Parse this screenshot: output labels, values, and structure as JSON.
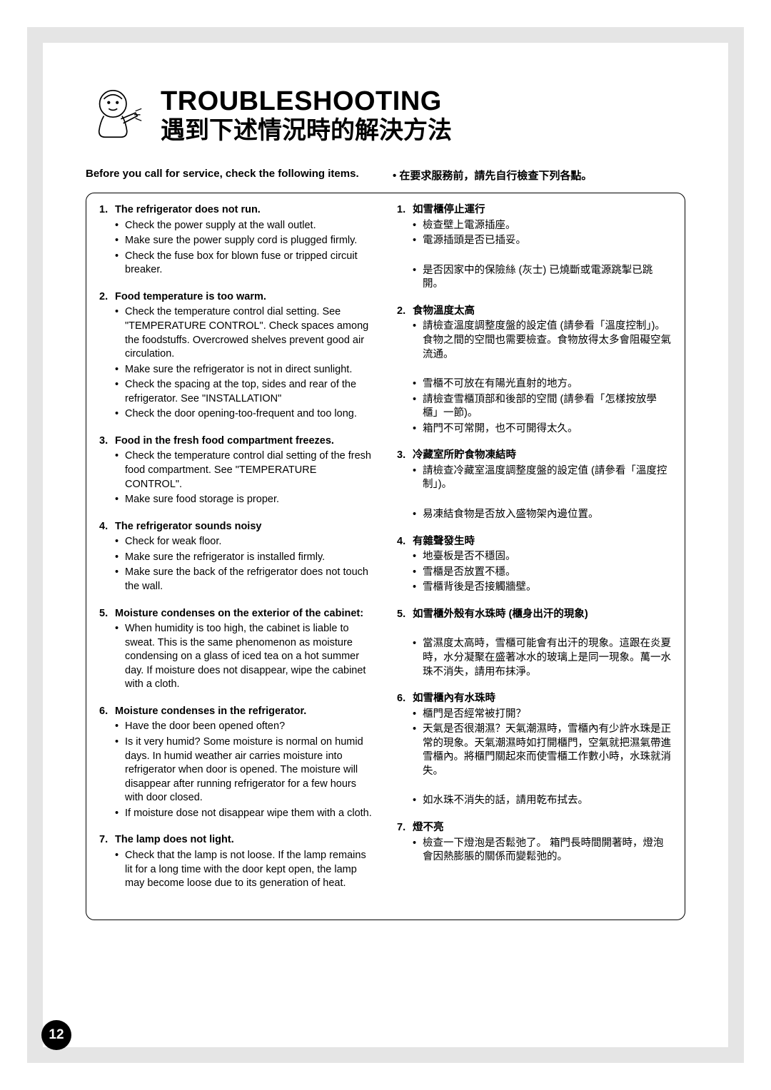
{
  "page_number": "12",
  "title_en": "TROUBLESHOOTING",
  "title_zh": "遇到下述情況時的解決方法",
  "intro_en": "Before you call for service, check the following items.",
  "intro_zh": "• 在要求服務前，請先自行檢查下列各點。",
  "left_items": [
    {
      "num": "1.",
      "title": "The refrigerator does not run.",
      "bullets": [
        "Check the power supply at the wall outlet.",
        "Make sure the power supply cord is plugged firmly.",
        "Check the fuse box for blown fuse or tripped circuit breaker."
      ]
    },
    {
      "num": "2.",
      "title": "Food temperature is too warm.",
      "bullets": [
        "Check the temperature control dial setting. See \"TEMPERATURE CONTROL\". Check spaces among the foodstuffs. Overcrowed shelves prevent good air circulation.",
        "Make sure the refrigerator is not in direct sunlight.",
        "Check the spacing at the top, sides and rear of the refrigerator. See \"INSTALLATION\"",
        "Check the door opening-too-frequent and too long."
      ]
    },
    {
      "num": "3.",
      "title": "Food in the fresh food compartment freezes.",
      "bullets": [
        "Check the temperature control dial setting of the fresh food compartment. See \"TEMPERATURE CONTROL\".",
        "Make sure food storage is proper."
      ]
    },
    {
      "num": "4.",
      "title": "The refrigerator sounds noisy",
      "bullets": [
        "Check for weak floor.",
        "Make sure the refrigerator is installed firmly.",
        "Make sure the back of the refrigerator does not touch the wall."
      ]
    },
    {
      "num": "5.",
      "title": "Moisture condenses on the exterior of the cabinet:",
      "bullets": [
        "When humidity is too high, the cabinet is liable to sweat. This is the same phenomenon as moisture condensing on a glass of iced tea on a hot summer day. If moisture does not disappear, wipe the cabinet with a cloth."
      ]
    },
    {
      "num": "6.",
      "title": "Moisture condenses in the refrigerator.",
      "bullets": [
        "Have the door been opened often?",
        "Is it very humid? Some moisture is normal on humid days. In humid weather air carries moisture into refrigerator when door is opened. The moisture will disappear after running refrigerator for a few hours with door closed.",
        "If moisture dose not disappear wipe them with a cloth."
      ]
    },
    {
      "num": "7.",
      "title": "The lamp does not light.",
      "bullets": [
        "Check that the lamp is not loose. If the lamp remains lit for a long time with the door kept open, the lamp may become loose due to its generation of heat."
      ]
    }
  ],
  "right_items": [
    {
      "num": "1.",
      "title": "如雪櫃停止運行",
      "bullets": [
        "檢查壁上電源插座。",
        "電源插頭是否已插妥。",
        "",
        "是否因家中的保險絲 (灰士) 已燒斷或電源跳掣已跳開。"
      ]
    },
    {
      "num": "2.",
      "title": "食物溫度太高",
      "bullets": [
        "請檢查溫度調整度盤的設定值 (請參看「溫度控制」)。食物之間的空間也需要檢查。食物放得太多會阻礙空氣流通。",
        "",
        "雪櫃不可放在有陽光直射的地方。",
        "請檢查雪櫃頂部和後部的空間 (請參看「怎樣按放學櫃」一節)。",
        "箱門不可常開，也不可開得太久。"
      ]
    },
    {
      "num": "3.",
      "title": "冷藏室所貯食物凍結時",
      "bullets": [
        "請檢查冷藏室溫度調整度盤的設定值 (請參看「溫度控制」)。",
        "",
        "易凍結食物是否放入盛物架內邊位置。"
      ]
    },
    {
      "num": "4.",
      "title": "有雜聲發生時",
      "bullets": [
        "地臺板是否不穩固。",
        "雪櫃是否放置不穩。",
        "雪櫃背後是否接觸牆壁。"
      ]
    },
    {
      "num": "5.",
      "title": "如雪櫃外殼有水珠時 (櫃身出汗的現象)",
      "bullets": [
        "",
        "當濕度太高時，雪櫃可能會有出汗的現象。這跟在炎夏時，水分凝聚在盛著冰水的玻璃上是同一現象。萬一水珠不消失，請用布抹淨。"
      ]
    },
    {
      "num": "6.",
      "title": "如雪櫃內有水珠時",
      "bullets": [
        "櫃門是否經常被打開？",
        "天氣是否很潮濕？天氣潮濕時，雪櫃內有少許水珠是正常的現象。天氣潮濕時如打開櫃門，空氣就把濕氣帶進雪櫃內。將櫃門關起來而使雪櫃工作數小時，水珠就消失。",
        "",
        "如水珠不消失的話，請用乾布拭去。"
      ]
    },
    {
      "num": "7.",
      "title": "燈不亮",
      "bullets": [
        "檢查一下燈泡是否鬆弛了。\n箱門長時間開著時，燈泡會因熱膨脹的關係而變鬆弛的。"
      ]
    }
  ],
  "colors": {
    "gray_bg": "#e5e5e5",
    "white": "#ffffff",
    "black": "#000000"
  }
}
